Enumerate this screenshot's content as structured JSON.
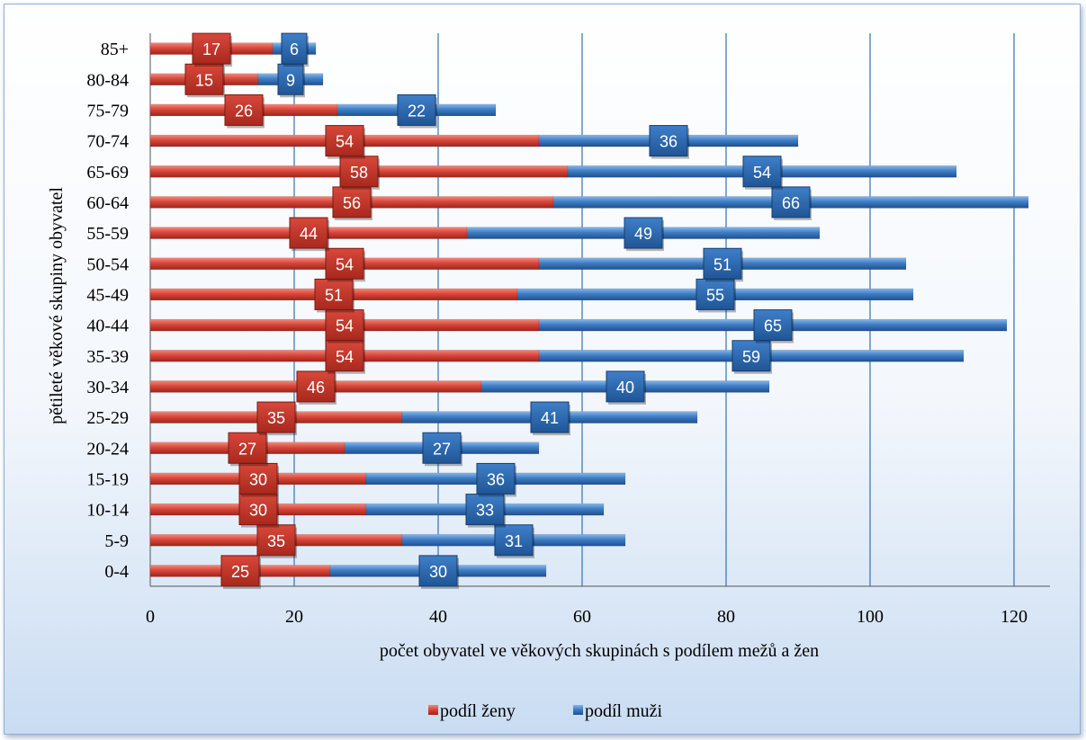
{
  "chart_data": {
    "type": "bar",
    "stacked": true,
    "orientation": "horizontal",
    "categories": [
      "0-4",
      "5-9",
      "10-14",
      "15-19",
      "20-24",
      "25-29",
      "30-34",
      "35-39",
      "40-44",
      "45-49",
      "50-54",
      "55-59",
      "60-64",
      "65-69",
      "70-74",
      "75-79",
      "80-84",
      "85+"
    ],
    "series": [
      {
        "name": "podíl ženy",
        "color": "#c0392b",
        "values": [
          25,
          35,
          30,
          30,
          27,
          35,
          46,
          54,
          54,
          51,
          54,
          44,
          56,
          58,
          54,
          26,
          15,
          17
        ]
      },
      {
        "name": "podíl muži",
        "color": "#2f6fb5",
        "values": [
          30,
          31,
          33,
          36,
          27,
          41,
          40,
          59,
          65,
          55,
          51,
          49,
          66,
          54,
          36,
          22,
          9,
          6
        ]
      }
    ],
    "xlabel": "počet obyvatel ve věkových skupinách s podílem mežů a žen",
    "ylabel": "pětileté věkové skupiny obyvatel",
    "xlim": [
      0,
      125
    ],
    "xticks": [
      0,
      20,
      40,
      60,
      80,
      100,
      120
    ],
    "grid": true,
    "legend_position": "bottom"
  }
}
